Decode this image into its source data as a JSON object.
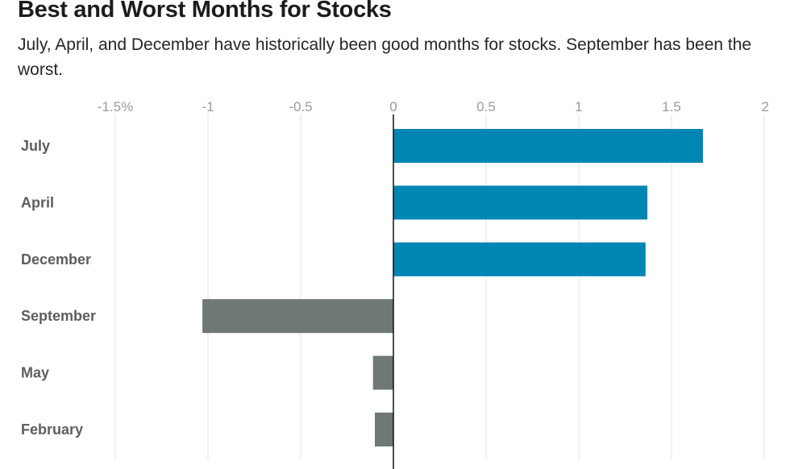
{
  "chart_data": {
    "type": "bar",
    "orientation": "horizontal",
    "title": "Best and Worst Months for Stocks",
    "subtitle": "July, April, and December have historically been good months for stocks. September has been the worst.",
    "xlabel": "",
    "ylabel": "",
    "xlim": [
      -1.5,
      2
    ],
    "ticks": [
      {
        "value": -1.5,
        "label": "-1.5%"
      },
      {
        "value": -1,
        "label": "-1"
      },
      {
        "value": -0.5,
        "label": "-0.5"
      },
      {
        "value": 0,
        "label": "0"
      },
      {
        "value": 0.5,
        "label": "0.5"
      },
      {
        "value": 1,
        "label": "1"
      },
      {
        "value": 1.5,
        "label": "1.5"
      },
      {
        "value": 2,
        "label": "2"
      }
    ],
    "categories": [
      "July",
      "April",
      "December",
      "September",
      "May",
      "February"
    ],
    "values": [
      1.67,
      1.37,
      1.36,
      -1.03,
      -0.11,
      -0.1
    ],
    "colors": {
      "positive": "#0086b3",
      "negative": "#6f7777",
      "grid": "#e3e3e3",
      "zero": "#111111"
    },
    "grid": true,
    "legend": "none"
  }
}
